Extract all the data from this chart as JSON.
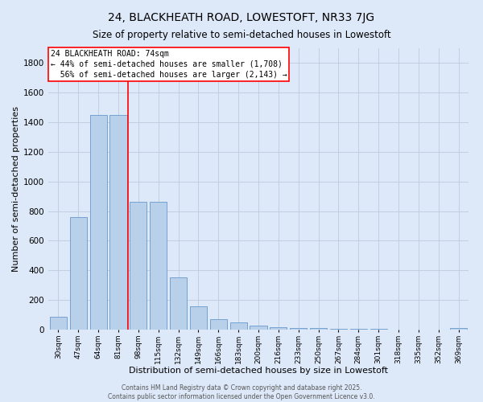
{
  "title": "24, BLACKHEATH ROAD, LOWESTOFT, NR33 7JG",
  "subtitle": "Size of property relative to semi-detached houses in Lowestoft",
  "xlabel": "Distribution of semi-detached houses by size in Lowestoft",
  "ylabel": "Number of semi-detached properties",
  "categories": [
    "30sqm",
    "47sqm",
    "64sqm",
    "81sqm",
    "98sqm",
    "115sqm",
    "132sqm",
    "149sqm",
    "166sqm",
    "183sqm",
    "200sqm",
    "216sqm",
    "233sqm",
    "250sqm",
    "267sqm",
    "284sqm",
    "301sqm",
    "318sqm",
    "335sqm",
    "352sqm",
    "369sqm"
  ],
  "values": [
    88,
    758,
    1449,
    1449,
    863,
    863,
    355,
    155,
    70,
    48,
    25,
    18,
    10,
    10,
    8,
    8,
    8,
    0,
    0,
    0,
    12
  ],
  "bar_color": "#b8d0ea",
  "bar_edge_color": "#6699cc",
  "annotation_text": "24 BLACKHEATH ROAD: 74sqm\n← 44% of semi-detached houses are smaller (1,708)\n  56% of semi-detached houses are larger (2,143) →",
  "box_color": "#cc0000",
  "background_color": "#dde8f8",
  "plot_bg_color": "#dde8f8",
  "grid_color": "#bbccdd",
  "ylim": [
    0,
    1900
  ],
  "red_line_x": 3.5,
  "footer": "Contains HM Land Registry data © Crown copyright and database right 2025.\nContains public sector information licensed under the Open Government Licence v3.0.",
  "title_fontsize": 10,
  "subtitle_fontsize": 8.5,
  "xlabel_fontsize": 8,
  "ylabel_fontsize": 8,
  "annot_fontsize": 7,
  "footer_fontsize": 5.5
}
